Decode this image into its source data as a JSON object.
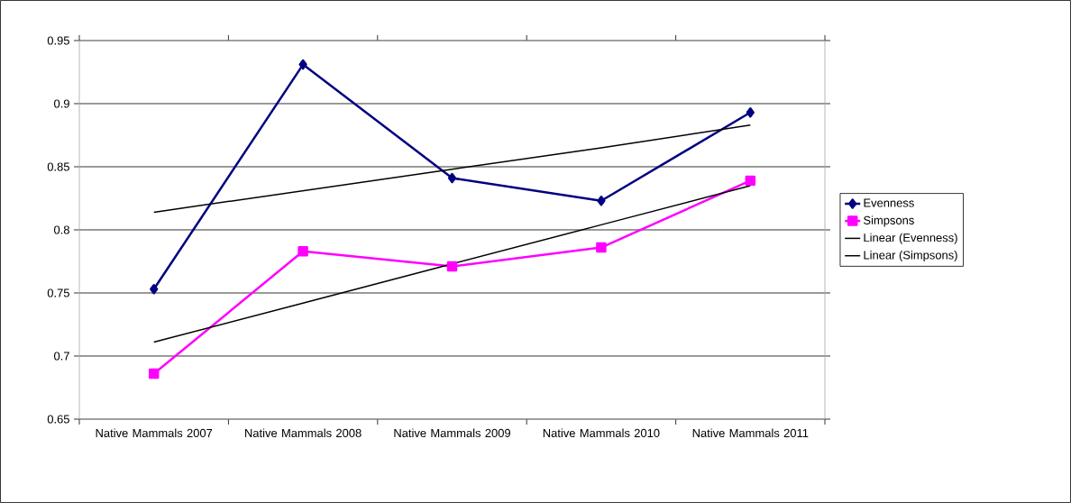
{
  "chart_data": {
    "type": "line",
    "categories": [
      "Native Mammals 2007",
      "Native Mammals 2008",
      "Native Mammals 2009",
      "Native Mammals 2010",
      "Native Mammals 2011"
    ],
    "series": [
      {
        "name": "Evenness",
        "color": "#000080",
        "marker": "diamond",
        "values": [
          0.753,
          0.931,
          0.841,
          0.823,
          0.893
        ]
      },
      {
        "name": "Simpsons",
        "color": "#ff00ff",
        "marker": "square",
        "values": [
          0.686,
          0.783,
          0.771,
          0.786,
          0.839
        ]
      },
      {
        "name": "Linear (Evenness)",
        "color": "#000000",
        "marker": "none",
        "values": [
          0.814,
          0.831,
          0.848,
          0.865,
          0.883
        ]
      },
      {
        "name": "Linear (Simpsons)",
        "color": "#000000",
        "marker": "none",
        "values": [
          0.711,
          0.742,
          0.773,
          0.804,
          0.835
        ]
      }
    ],
    "ylim": [
      0.65,
      0.95
    ],
    "yticks": [
      0.65,
      0.7,
      0.75,
      0.8,
      0.85,
      0.9,
      0.95
    ],
    "grid": "y",
    "legend": "right",
    "line_style": "solid"
  }
}
